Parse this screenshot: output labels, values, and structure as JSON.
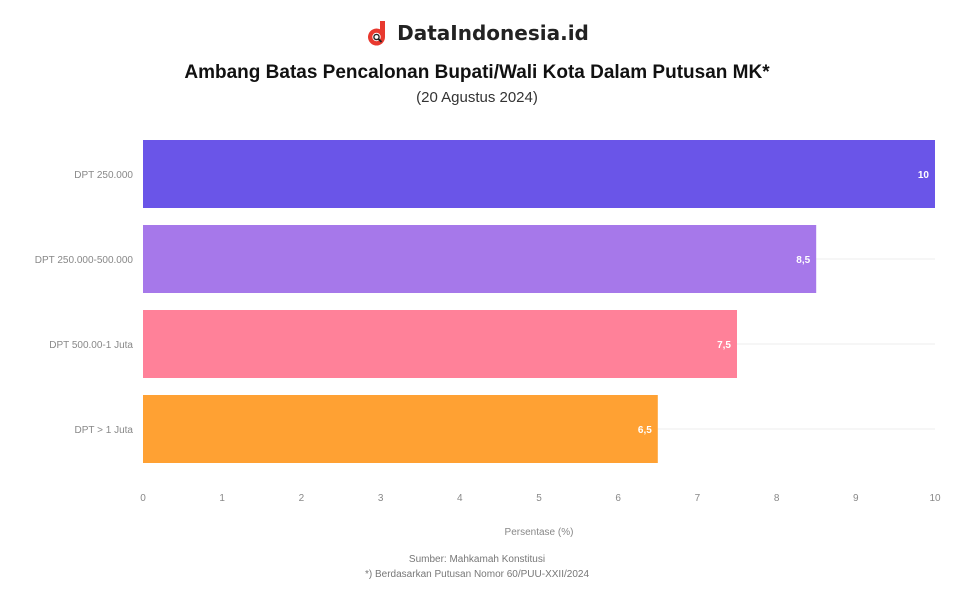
{
  "brand": {
    "name": "DataIndonesia.id",
    "logo_icon": "dataindonesia-logo-icon",
    "accent_color": "#e8392f"
  },
  "chart_data": {
    "type": "bar",
    "orientation": "horizontal",
    "title": "Ambang Batas Pencalonan Bupati/Wali Kota Dalam Putusan MK*",
    "subtitle": "(20 Agustus 2024)",
    "categories": [
      "DPT 250.000",
      "DPT 250.000-500.000",
      "DPT 500.00-1 Juta",
      "DPT > 1 Juta"
    ],
    "values": [
      10,
      8.5,
      7.5,
      6.5
    ],
    "value_labels": [
      "10",
      "8,5",
      "7,5",
      "6,5"
    ],
    "colors": [
      "#6a55e8",
      "#a678ea",
      "#ff8199",
      "#ffa133"
    ],
    "xlabel": "Persentase (%)",
    "ylabel": "",
    "xlim": [
      0,
      10
    ],
    "xticks": [
      "0",
      "1",
      "2",
      "3",
      "4",
      "5",
      "6",
      "7",
      "8",
      "9",
      "10"
    ],
    "grid": true
  },
  "source": {
    "line1": "Sumber: Mahkamah Konstitusi",
    "line2": "*) Berdasarkan Putusan Nomor 60/PUU-XXII/2024"
  }
}
